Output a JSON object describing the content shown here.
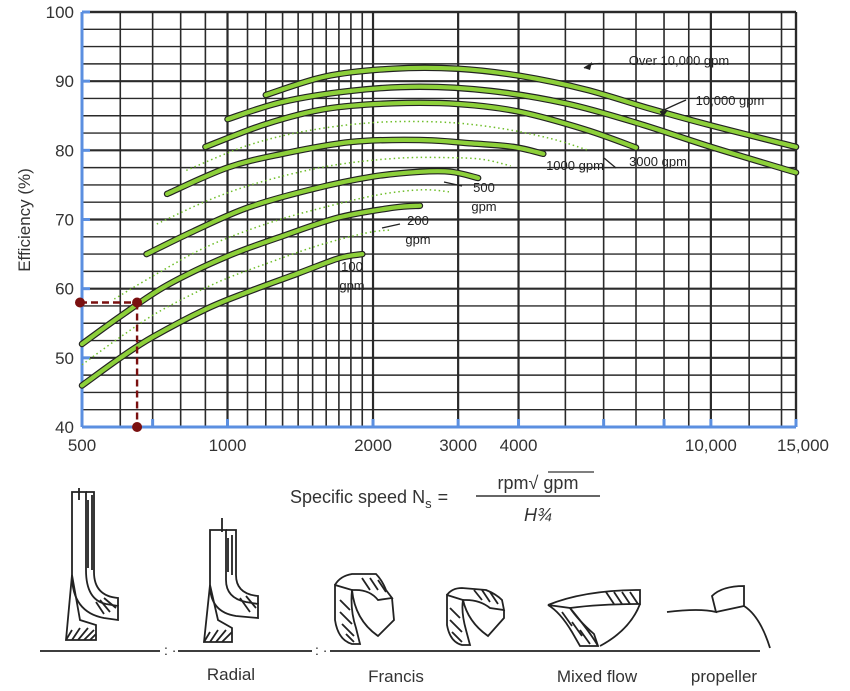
{
  "chart_data": {
    "type": "line",
    "x_scale": "log",
    "xlim": [
      500,
      15000
    ],
    "ylim": [
      40,
      100
    ],
    "ylabel": "Efficiency (%)",
    "xlabel": "Specific speed N",
    "xlabel_subscript": "s",
    "xlabel_eq": "=",
    "xlabel_numerator": "rpm√ gpm",
    "xlabel_denominator": "H¾",
    "x_ticks": [
      500,
      1000,
      2000,
      3000,
      4000,
      10000,
      15000
    ],
    "x_tick_labels": [
      "500",
      "1000",
      "2000",
      "3000",
      "4000",
      "10,000",
      "15,000"
    ],
    "y_ticks": [
      40,
      50,
      60,
      70,
      80,
      90,
      100
    ],
    "y_tick_labels": [
      "40",
      "50",
      "60",
      "70",
      "80",
      "90",
      "100"
    ],
    "series": [
      {
        "name": "100 gpm",
        "label_lines": [
          "100",
          "gpm"
        ],
        "points": [
          [
            500,
            46
          ],
          [
            600,
            50
          ],
          [
            700,
            53
          ],
          [
            900,
            57
          ],
          [
            1100,
            59.5
          ],
          [
            1400,
            62.2
          ],
          [
            1700,
            64.4
          ],
          [
            1900,
            65
          ]
        ]
      },
      {
        "name": "200 gpm",
        "label_lines": [
          "200",
          "gpm"
        ],
        "points": [
          [
            500,
            52
          ],
          [
            600,
            56
          ],
          [
            750,
            60.5
          ],
          [
            1000,
            64.7
          ],
          [
            1300,
            67.6
          ],
          [
            1700,
            70.3
          ],
          [
            2200,
            71.7
          ],
          [
            2500,
            72
          ]
        ]
      },
      {
        "name": "500 gpm",
        "label_lines": [
          "500",
          "gpm"
        ],
        "points": [
          [
            680,
            65
          ],
          [
            850,
            68.3
          ],
          [
            1100,
            71.7
          ],
          [
            1500,
            74.4
          ],
          [
            2000,
            76.2
          ],
          [
            2500,
            76.9
          ],
          [
            2900,
            76.9
          ],
          [
            3300,
            76
          ]
        ]
      },
      {
        "name": "1000 gpm",
        "label_lines": [
          "1000 gpm"
        ],
        "points": [
          [
            750,
            73.7
          ],
          [
            1000,
            77.5
          ],
          [
            1300,
            79.5
          ],
          [
            1800,
            81.2
          ],
          [
            2500,
            81.5
          ],
          [
            3200,
            81
          ],
          [
            3900,
            80.5
          ],
          [
            4500,
            79.5
          ]
        ]
      },
      {
        "name": "3000 gpm",
        "label_lines": [
          "3000 gpm"
        ],
        "points": [
          [
            900,
            80.5
          ],
          [
            1200,
            83.8
          ],
          [
            1600,
            86
          ],
          [
            2200,
            86.8
          ],
          [
            3000,
            86.7
          ],
          [
            4000,
            85.6
          ],
          [
            5500,
            83
          ],
          [
            7000,
            80.4
          ]
        ]
      },
      {
        "name": "10,000 gpm",
        "label_lines": [
          "10,000 gpm"
        ],
        "points": [
          [
            1000,
            84.5
          ],
          [
            1300,
            87
          ],
          [
            1800,
            88.6
          ],
          [
            2500,
            89.2
          ],
          [
            3500,
            88.6
          ],
          [
            5000,
            86.8
          ],
          [
            7000,
            84
          ],
          [
            10000,
            80.5
          ],
          [
            15000,
            76.8
          ]
        ]
      },
      {
        "name": "Over 10,000 gpm",
        "label_lines": [
          "Over 10,000 gpm"
        ],
        "points": [
          [
            1200,
            88
          ],
          [
            1600,
            90.7
          ],
          [
            2200,
            91.8
          ],
          [
            3000,
            91.8
          ],
          [
            4000,
            90.8
          ],
          [
            5500,
            88.8
          ],
          [
            7500,
            86
          ],
          [
            10000,
            83.6
          ],
          [
            15000,
            80.5
          ]
        ]
      }
    ],
    "annotation": {
      "x": 650,
      "y": 58
    },
    "pump_types": [
      "Radial",
      "Francis",
      "Mixed flow",
      "propeller"
    ],
    "colors": {
      "curve": "#8dd03a",
      "curve_edge": "#222222",
      "dotted_guide": "#6fbe2a",
      "grid": "#2a2a2a",
      "axis": "#5b8fe0",
      "marker": "#7a1010",
      "text": "#333333"
    }
  }
}
